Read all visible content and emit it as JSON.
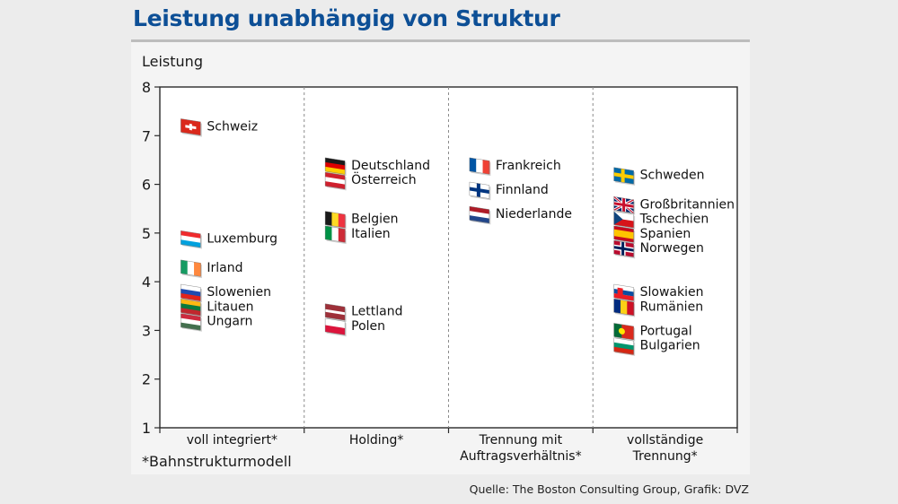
{
  "title": "Leistung unabhängig von Struktur",
  "source": "Quelle: The Boston Consulting Group, Grafik: DVZ",
  "chart_data": {
    "type": "scatter",
    "ylabel": "Leistung",
    "ylim": [
      1,
      8
    ],
    "yticks": [
      1,
      2,
      3,
      4,
      5,
      6,
      7,
      8
    ],
    "grid": false,
    "categories": [
      [
        "voll integriert*"
      ],
      [
        "Holding*"
      ],
      [
        "Trennung mit",
        "Auftragsverhältnis*"
      ],
      [
        "vollständige",
        "Trennung*"
      ]
    ],
    "footnote": "*Bahnstrukturmodell",
    "points": [
      {
        "label": "Schweiz",
        "group": 0,
        "value": 7.2,
        "flag": "ch"
      },
      {
        "label": "Luxemburg",
        "group": 0,
        "value": 4.9,
        "flag": "lu"
      },
      {
        "label": "Irland",
        "group": 0,
        "value": 4.3,
        "flag": "ie"
      },
      {
        "label": "Slowenien",
        "group": 0,
        "value": 3.8,
        "flag": "si"
      },
      {
        "label": "Litauen",
        "group": 0,
        "value": 3.5,
        "flag": "lt"
      },
      {
        "label": "Ungarn",
        "group": 0,
        "value": 3.2,
        "flag": "hu"
      },
      {
        "label": "Deutschland",
        "group": 1,
        "value": 6.4,
        "flag": "de"
      },
      {
        "label": "Österreich",
        "group": 1,
        "value": 6.1,
        "flag": "at"
      },
      {
        "label": "Belgien",
        "group": 1,
        "value": 5.3,
        "flag": "be"
      },
      {
        "label": "Italien",
        "group": 1,
        "value": 5.0,
        "flag": "it"
      },
      {
        "label": "Lettland",
        "group": 1,
        "value": 3.4,
        "flag": "lv"
      },
      {
        "label": "Polen",
        "group": 1,
        "value": 3.1,
        "flag": "pl"
      },
      {
        "label": "Frankreich",
        "group": 2,
        "value": 6.4,
        "flag": "fr"
      },
      {
        "label": "Finnland",
        "group": 2,
        "value": 5.9,
        "flag": "fi"
      },
      {
        "label": "Niederlande",
        "group": 2,
        "value": 5.4,
        "flag": "nl"
      },
      {
        "label": "Schweden",
        "group": 3,
        "value": 6.2,
        "flag": "se"
      },
      {
        "label": "Großbritannien",
        "group": 3,
        "value": 5.6,
        "flag": "gb"
      },
      {
        "label": "Tschechien",
        "group": 3,
        "value": 5.3,
        "flag": "cz"
      },
      {
        "label": "Spanien",
        "group": 3,
        "value": 5.0,
        "flag": "es"
      },
      {
        "label": "Norwegen",
        "group": 3,
        "value": 4.7,
        "flag": "no"
      },
      {
        "label": "Slowakien",
        "group": 3,
        "value": 3.8,
        "flag": "sk"
      },
      {
        "label": "Rumänien",
        "group": 3,
        "value": 3.5,
        "flag": "ro"
      },
      {
        "label": "Portugal",
        "group": 3,
        "value": 3.0,
        "flag": "pt"
      },
      {
        "label": "Bulgarien",
        "group": 3,
        "value": 2.7,
        "flag": "bg"
      }
    ]
  }
}
